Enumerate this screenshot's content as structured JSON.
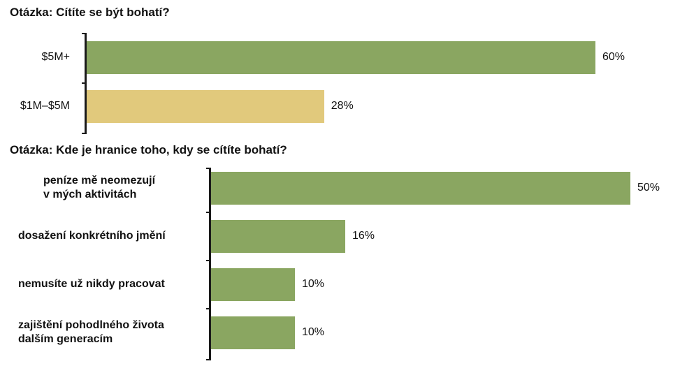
{
  "chart_data": [
    {
      "type": "bar",
      "orientation": "horizontal",
      "title": "Otázka: Cítíte se být bohatí?",
      "categories": [
        "$5M+",
        "$1M–$5M"
      ],
      "values": [
        60,
        28
      ],
      "value_labels": [
        "60%",
        "28%"
      ],
      "colors": [
        "#8aa661",
        "#e1c97c"
      ],
      "xlim": [
        0,
        60
      ]
    },
    {
      "type": "bar",
      "orientation": "horizontal",
      "title": "Otázka: Kde je hranice toho, kdy se cítíte bohatí?",
      "categories": [
        [
          "peníze mě neomezují",
          "v mých aktivitách"
        ],
        [
          "dosažení konkrétního jmění"
        ],
        [
          "nemusíte už nikdy pracovat"
        ],
        [
          "zajištění pohodlného života",
          "dalším generacím"
        ]
      ],
      "values": [
        50,
        16,
        10,
        10
      ],
      "value_labels": [
        "50%",
        "16%",
        "10%",
        "10%"
      ],
      "colors": [
        "#8aa661",
        "#8aa661",
        "#8aa661",
        "#8aa661"
      ],
      "xlim": [
        0,
        50
      ]
    }
  ]
}
